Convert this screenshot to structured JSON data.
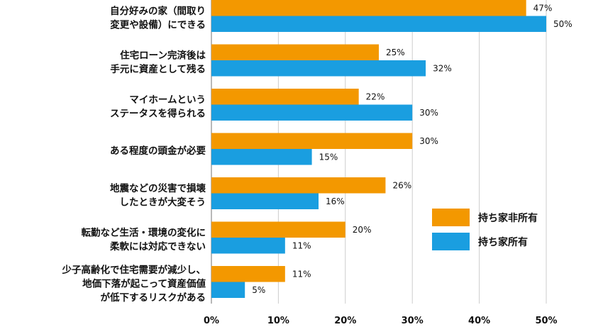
{
  "chart_data": {
    "type": "bar",
    "orientation": "horizontal",
    "categories": [
      [
        "自分好みの家（間取り",
        "変更や設備）にできる"
      ],
      [
        "住宅ローン完済後は",
        "手元に資産として残る"
      ],
      [
        "マイホームという",
        "ステータスを得られる"
      ],
      [
        "ある程度の頭金が必要"
      ],
      [
        "地震などの災害で損壊",
        "したときが大変そう"
      ],
      [
        "転勤など生活・環境の変化に",
        "柔軟には対応できない"
      ],
      [
        "少子高齢化で住宅需要が減少し、",
        "地価下落が起こって資産価値",
        "が低下するリスクがある"
      ]
    ],
    "series": [
      {
        "name": "持ち家非所有",
        "color": "#f39800",
        "values": [
          47,
          25,
          22,
          30,
          26,
          20,
          11
        ]
      },
      {
        "name": "持ち家所有",
        "color": "#1a9ee0",
        "values": [
          50,
          32,
          30,
          15,
          16,
          11,
          5
        ]
      }
    ],
    "value_suffix": "%",
    "xlim": [
      0,
      50
    ],
    "xticks": [
      0,
      10,
      20,
      30,
      40,
      50
    ],
    "xtick_labels": [
      "0%",
      "10%",
      "20%",
      "30%",
      "40%",
      "50%"
    ],
    "grid": true,
    "legend_position": "right"
  }
}
